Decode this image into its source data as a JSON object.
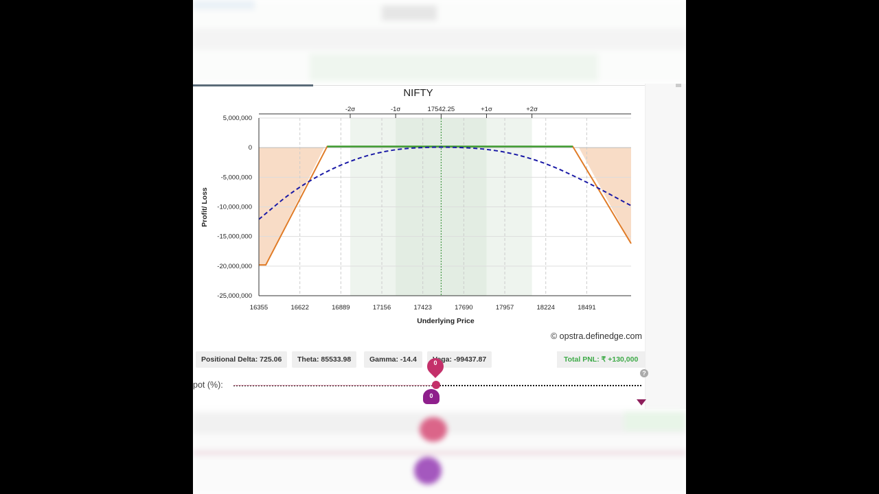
{
  "chart_data": {
    "type": "line",
    "title": "NIFTY",
    "xlabel": "Underlying Price",
    "ylabel": "Profit/ Loss",
    "xlim": [
      16355,
      18780
    ],
    "ylim": [
      -25000000,
      5000000
    ],
    "x_ticks": [
      16355,
      16622,
      16889,
      17156,
      17423,
      17690,
      17957,
      18224,
      18491
    ],
    "y_ticks": [
      5000000,
      0,
      -5000000,
      -10000000,
      -15000000,
      -20000000,
      -25000000
    ],
    "y_tick_labels": [
      "5,000,000",
      "0",
      "-5,000,000",
      "-10,000,000",
      "-15,000,000",
      "-20,000,000",
      "-25,000,000"
    ],
    "sigma_marks": [
      {
        "label": "-2σ",
        "x": 16950
      },
      {
        "label": "-1σ",
        "x": 17246
      },
      {
        "label": "17542.25",
        "x": 17542.25
      },
      {
        "label": "+1σ",
        "x": 17838
      },
      {
        "label": "+2σ",
        "x": 18134
      }
    ],
    "spot": 17542.25,
    "grid": true,
    "series": [
      {
        "style": "solid",
        "color": "#e07b26",
        "points": [
          [
            16355,
            -19800000
          ],
          [
            16400,
            -19800000
          ],
          [
            16800,
            200000
          ],
          [
            18400,
            200000
          ],
          [
            18780,
            -16200000
          ]
        ]
      },
      {
        "style": "dashed",
        "color": "#1a1aa6",
        "points": [
          [
            16355,
            -12100000
          ],
          [
            16600,
            -6800000
          ],
          [
            16900,
            -2600000
          ],
          [
            17200,
            -300000
          ],
          [
            17542,
            200000
          ],
          [
            17900,
            -300000
          ],
          [
            18200,
            -2300000
          ],
          [
            18500,
            -5900000
          ],
          [
            18780,
            -9800000
          ]
        ]
      }
    ]
  },
  "credit": "© opstra.definedge.com",
  "greeks": {
    "delta": "Positional Delta: 725.06",
    "theta": "Theta: 85533.98",
    "gamma": "Gamma: -14.4",
    "vega": "Vega: -99437.87"
  },
  "total_pnl": "Total PNL: ₹ +130,000",
  "spot_slider": {
    "label": "pot (%):",
    "top_value": "0",
    "bottom_value": "0"
  },
  "colors": {
    "profit_line": "#3d9a2e",
    "loss_fill": "#f8dcc6",
    "sigma1_band": "#e3ede3",
    "sigma2_band": "#eef4ee",
    "pnl_text": "#3daa47"
  },
  "help_icon": "?"
}
